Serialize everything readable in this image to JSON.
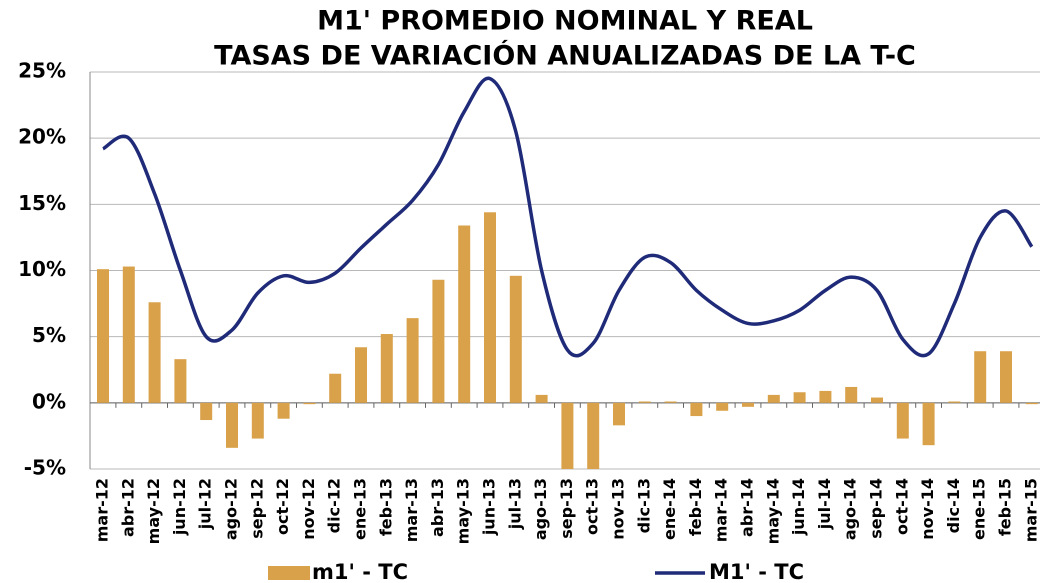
{
  "chart_data": {
    "type": "bar_line",
    "title": "M1' PROMEDIO NOMINAL Y REAL",
    "subtitle": "TASAS DE VARIACIÓN ANUALIZADAS DE LA T-C",
    "categories": [
      "mar-12",
      "abr-12",
      "may-12",
      "jun-12",
      "jul-12",
      "ago-12",
      "sep-12",
      "oct-12",
      "nov-12",
      "dic-12",
      "ene-13",
      "feb-13",
      "mar-13",
      "abr-13",
      "may-13",
      "jun-13",
      "jul-13",
      "ago-13",
      "sep-13",
      "oct-13",
      "nov-13",
      "dic-13",
      "ene-14",
      "feb-14",
      "mar-14",
      "abr-14",
      "may-14",
      "jun-14",
      "jul-14",
      "ago-14",
      "sep-14",
      "oct-14",
      "nov-14",
      "dic-14",
      "ene-15",
      "feb-15",
      "mar-15"
    ],
    "series": [
      {
        "name": "m1' - TC",
        "type": "bar",
        "color": "#d9a24a",
        "values": [
          10.1,
          10.3,
          7.6,
          3.3,
          -1.3,
          -3.4,
          -2.7,
          -1.2,
          -0.1,
          2.2,
          4.2,
          5.2,
          6.4,
          9.3,
          13.4,
          14.4,
          9.6,
          0.6,
          -5.0,
          -5.0,
          -1.7,
          0.1,
          0.1,
          -1.0,
          -0.6,
          -0.3,
          0.6,
          0.8,
          0.9,
          1.2,
          0.4,
          -2.7,
          -3.2,
          0.1,
          3.9,
          3.9,
          -0.1
        ]
      },
      {
        "name": "M1' - TC",
        "type": "line",
        "color": "#1f2a78",
        "values": [
          19.2,
          20.0,
          15.8,
          10.0,
          5.0,
          5.5,
          8.3,
          9.6,
          9.1,
          9.8,
          11.7,
          13.5,
          15.3,
          18.0,
          22.0,
          24.5,
          20.5,
          10.0,
          4.0,
          4.5,
          8.5,
          11.0,
          10.6,
          8.5,
          7.0,
          6.0,
          6.2,
          7.0,
          8.5,
          9.5,
          8.5,
          4.8,
          3.7,
          7.5,
          12.5,
          14.5,
          11.8
        ]
      }
    ],
    "ylim": [
      -5,
      25
    ],
    "yticks": [
      {
        "value": -5,
        "label": "-5%"
      },
      {
        "value": 0,
        "label": "0%"
      },
      {
        "value": 5,
        "label": "5%"
      },
      {
        "value": 10,
        "label": "10%"
      },
      {
        "value": 15,
        "label": "15%"
      },
      {
        "value": 20,
        "label": "20%"
      },
      {
        "value": 25,
        "label": "25%"
      }
    ],
    "grid": true,
    "legend": "bottom"
  }
}
